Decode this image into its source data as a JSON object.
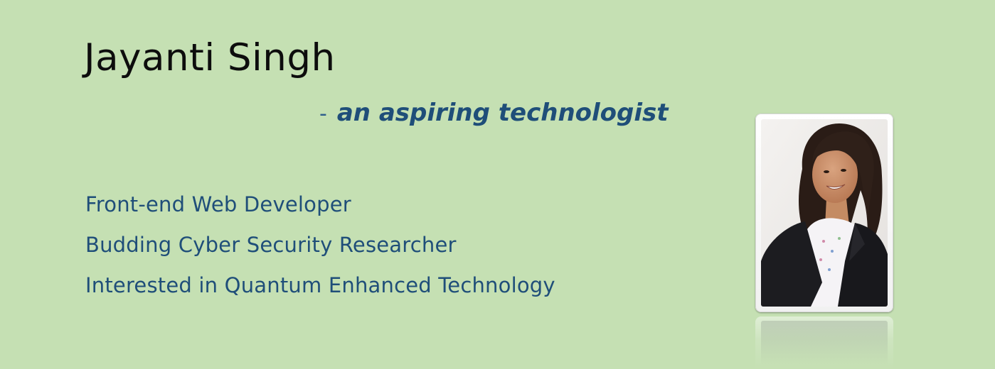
{
  "profile": {
    "name": "Jayanti Singh",
    "tagline_dash": "-",
    "tagline": "an aspiring technologist",
    "roles": [
      "Front-end Web Developer",
      "Budding Cyber Security Researcher",
      "Interested in Quantum Enhanced Technology"
    ]
  },
  "colors": {
    "background": "#c5e0b3",
    "name_text": "#0d0d0d",
    "accent_text": "#1f4e79"
  },
  "photo": {
    "icon": "profile-photo"
  }
}
